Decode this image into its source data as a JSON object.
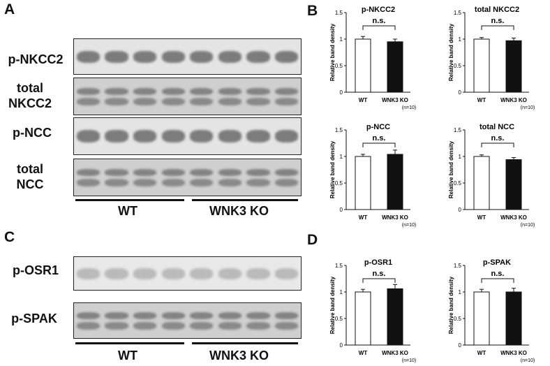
{
  "panels": {
    "A": "A",
    "B": "B",
    "C": "C",
    "D": "D"
  },
  "blots_A": {
    "lanes": 8,
    "rows": [
      {
        "label": "p-NKCC2",
        "band": "single"
      },
      {
        "label": "total\nNKCC2",
        "band": "double"
      },
      {
        "label": "p-NCC",
        "band": "single"
      },
      {
        "label": "total\nNCC",
        "band": "double"
      }
    ],
    "groups": [
      "WT",
      "WNK3 KO"
    ]
  },
  "blots_C": {
    "lanes": 8,
    "rows": [
      {
        "label": "p-OSR1",
        "band": "faint"
      },
      {
        "label": "p-SPAK",
        "band": "double"
      }
    ],
    "groups": [
      "WT",
      "WNK3 KO"
    ]
  },
  "chart_data": [
    {
      "type": "bar",
      "title": "p-NKCC2",
      "ylabel": "Relative band density",
      "categories": [
        "WT",
        "WNK3 KO"
      ],
      "values": [
        1.0,
        0.95
      ],
      "errors": [
        0.05,
        0.05
      ],
      "ylim": [
        0,
        1.5
      ],
      "yticks": [
        "0",
        "0.5",
        "1",
        "1.5"
      ],
      "significance": "n.s.",
      "n_note": "(n=10)",
      "colors": [
        "#ffffff",
        "#111111"
      ]
    },
    {
      "type": "bar",
      "title": "total NKCC2",
      "ylabel": "Relative band density",
      "categories": [
        "WT",
        "WNK3 KO"
      ],
      "values": [
        1.0,
        0.97
      ],
      "errors": [
        0.03,
        0.05
      ],
      "ylim": [
        0,
        1.5
      ],
      "yticks": [
        "0",
        "0.5",
        "1",
        "1.5"
      ],
      "significance": "n.s.",
      "n_note": "(n=10)",
      "colors": [
        "#ffffff",
        "#111111"
      ]
    },
    {
      "type": "bar",
      "title": "p-NCC",
      "ylabel": "Relative band density",
      "categories": [
        "WT",
        "WNK3 KO"
      ],
      "values": [
        1.0,
        1.04
      ],
      "errors": [
        0.04,
        0.08
      ],
      "ylim": [
        0,
        1.5
      ],
      "yticks": [
        "0",
        "0.5",
        "1",
        "1.5"
      ],
      "significance": "n.s.",
      "n_note": "(n=10)",
      "colors": [
        "#ffffff",
        "#111111"
      ]
    },
    {
      "type": "bar",
      "title": "total NCC",
      "ylabel": "Relative band density",
      "categories": [
        "WT",
        "WNK3 KO"
      ],
      "values": [
        1.0,
        0.94
      ],
      "errors": [
        0.03,
        0.04
      ],
      "ylim": [
        0,
        1.5
      ],
      "yticks": [
        "0",
        "0.5",
        "1",
        "1.5"
      ],
      "significance": "n.s.",
      "n_note": "(n=10)",
      "colors": [
        "#ffffff",
        "#111111"
      ]
    },
    {
      "type": "bar",
      "title": "p-OSR1",
      "ylabel": "Relative band density",
      "categories": [
        "WT",
        "WNK3 KO"
      ],
      "values": [
        1.0,
        1.06
      ],
      "errors": [
        0.05,
        0.08
      ],
      "ylim": [
        0,
        1.5
      ],
      "yticks": [
        "0",
        "0.5",
        "1",
        "1.5"
      ],
      "significance": "n.s.",
      "n_note": "(n=10)",
      "colors": [
        "#ffffff",
        "#111111"
      ]
    },
    {
      "type": "bar",
      "title": "p-SPAK",
      "ylabel": "Relative band density",
      "categories": [
        "WT",
        "WNK3 KO"
      ],
      "values": [
        1.0,
        1.0
      ],
      "errors": [
        0.05,
        0.07
      ],
      "ylim": [
        0,
        1.5
      ],
      "yticks": [
        "0",
        "0.5",
        "1",
        "1.5"
      ],
      "significance": "n.s.",
      "n_note": "(n=10)",
      "colors": [
        "#ffffff",
        "#111111"
      ]
    }
  ]
}
